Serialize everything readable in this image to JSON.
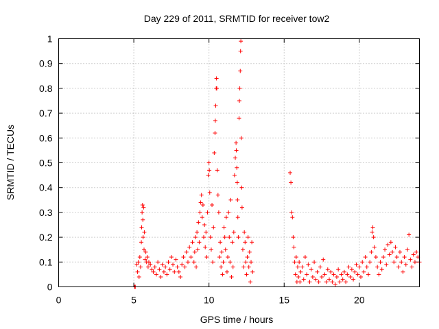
{
  "chart_data": {
    "type": "scatter",
    "title": "Day 229 of 2011, SRMTID for receiver tow2",
    "xlabel": "GPS time / hours",
    "ylabel": "SRMTID / TECUs",
    "xlim": [
      0,
      24
    ],
    "ylim": [
      0,
      1
    ],
    "xticks": [
      "0",
      "5",
      "10",
      "15",
      "20"
    ],
    "yticks": [
      "0",
      "0.1",
      "0.2",
      "0.3",
      "0.4",
      "0.5",
      "0.6",
      "0.7",
      "0.8",
      "0.9",
      "1"
    ],
    "grid": true,
    "marker": "plus",
    "series_color": "#ff0000",
    "series": [
      {
        "points": [
          [
            5.05,
            0.0
          ],
          [
            5.08,
            0.0
          ],
          [
            5.1,
            0.0
          ],
          [
            5.2,
            0.09
          ],
          [
            5.25,
            0.06
          ],
          [
            5.3,
            0.1
          ],
          [
            5.35,
            0.04
          ],
          [
            5.4,
            0.12
          ],
          [
            5.45,
            0.08
          ],
          [
            5.5,
            0.18
          ],
          [
            5.52,
            0.24
          ],
          [
            5.55,
            0.3
          ],
          [
            5.58,
            0.33
          ],
          [
            5.6,
            0.27
          ],
          [
            5.62,
            0.2
          ],
          [
            5.65,
            0.32
          ],
          [
            5.68,
            0.15
          ],
          [
            5.7,
            0.22
          ],
          [
            5.75,
            0.11
          ],
          [
            5.8,
            0.14
          ],
          [
            5.85,
            0.1
          ],
          [
            5.9,
            0.12
          ],
          [
            5.95,
            0.08
          ],
          [
            6.0,
            0.1
          ],
          [
            6.1,
            0.09
          ],
          [
            6.2,
            0.07
          ],
          [
            6.3,
            0.06
          ],
          [
            6.4,
            0.08
          ],
          [
            6.5,
            0.05
          ],
          [
            6.6,
            0.1
          ],
          [
            6.7,
            0.07
          ],
          [
            6.8,
            0.04
          ],
          [
            6.9,
            0.09
          ],
          [
            7.0,
            0.06
          ],
          [
            7.1,
            0.08
          ],
          [
            7.2,
            0.05
          ],
          [
            7.3,
            0.1
          ],
          [
            7.4,
            0.07
          ],
          [
            7.5,
            0.12
          ],
          [
            7.6,
            0.09
          ],
          [
            7.7,
            0.06
          ],
          [
            7.8,
            0.11
          ],
          [
            7.9,
            0.08
          ],
          [
            8.0,
            0.06
          ],
          [
            8.1,
            0.04
          ],
          [
            8.2,
            0.09
          ],
          [
            8.3,
            0.12
          ],
          [
            8.4,
            0.08
          ],
          [
            8.5,
            0.14
          ],
          [
            8.6,
            0.1
          ],
          [
            8.7,
            0.16
          ],
          [
            8.8,
            0.12
          ],
          [
            8.9,
            0.18
          ],
          [
            9.0,
            0.1
          ],
          [
            9.05,
            0.14
          ],
          [
            9.1,
            0.2
          ],
          [
            9.15,
            0.08
          ],
          [
            9.2,
            0.22
          ],
          [
            9.25,
            0.15
          ],
          [
            9.3,
            0.26
          ],
          [
            9.35,
            0.18
          ],
          [
            9.4,
            0.3
          ],
          [
            9.45,
            0.34
          ],
          [
            9.5,
            0.37
          ],
          [
            9.55,
            0.28
          ],
          [
            9.6,
            0.33
          ],
          [
            9.65,
            0.2
          ],
          [
            9.7,
            0.25
          ],
          [
            9.75,
            0.16
          ],
          [
            9.8,
            0.22
          ],
          [
            9.85,
            0.12
          ],
          [
            9.9,
            0.3
          ],
          [
            9.95,
            0.45
          ],
          [
            10.0,
            0.5
          ],
          [
            10.02,
            0.47
          ],
          [
            10.05,
            0.38
          ],
          [
            10.1,
            0.2
          ],
          [
            10.15,
            0.15
          ],
          [
            10.2,
            0.33
          ],
          [
            10.25,
            0.1
          ],
          [
            10.3,
            0.24
          ],
          [
            10.35,
            0.54
          ],
          [
            10.4,
            0.62
          ],
          [
            10.42,
            0.67
          ],
          [
            10.45,
            0.73
          ],
          [
            10.48,
            0.8
          ],
          [
            10.5,
            0.84
          ],
          [
            10.52,
            0.8
          ],
          [
            10.55,
            0.47
          ],
          [
            10.6,
            0.37
          ],
          [
            10.65,
            0.3
          ],
          [
            10.7,
            0.12
          ],
          [
            10.75,
            0.18
          ],
          [
            10.8,
            0.08
          ],
          [
            10.85,
            0.14
          ],
          [
            10.9,
            0.05
          ],
          [
            10.95,
            0.1
          ],
          [
            11.0,
            0.24
          ],
          [
            11.05,
            0.2
          ],
          [
            11.1,
            0.15
          ],
          [
            11.15,
            0.28
          ],
          [
            11.2,
            0.06
          ],
          [
            11.25,
            0.12
          ],
          [
            11.3,
            0.3
          ],
          [
            11.35,
            0.2
          ],
          [
            11.4,
            0.1
          ],
          [
            11.45,
            0.35
          ],
          [
            11.5,
            0.04
          ],
          [
            11.55,
            0.18
          ],
          [
            11.6,
            0.08
          ],
          [
            11.65,
            0.22
          ],
          [
            11.7,
            0.45
          ],
          [
            11.75,
            0.52
          ],
          [
            11.8,
            0.58
          ],
          [
            11.82,
            0.55
          ],
          [
            11.85,
            0.48
          ],
          [
            11.88,
            0.42
          ],
          [
            11.9,
            0.35
          ],
          [
            11.92,
            0.28
          ],
          [
            11.95,
            0.2
          ],
          [
            12.0,
            0.68
          ],
          [
            12.02,
            0.75
          ],
          [
            12.05,
            0.8
          ],
          [
            12.08,
            0.87
          ],
          [
            12.1,
            0.95
          ],
          [
            12.12,
            0.99
          ],
          [
            12.15,
            0.6
          ],
          [
            12.18,
            0.4
          ],
          [
            12.2,
            0.32
          ],
          [
            12.25,
            0.15
          ],
          [
            12.3,
            0.08
          ],
          [
            12.35,
            0.22
          ],
          [
            12.4,
            0.18
          ],
          [
            12.45,
            0.1
          ],
          [
            12.5,
            0.05
          ],
          [
            12.55,
            0.12
          ],
          [
            12.6,
            0.2
          ],
          [
            12.65,
            0.08
          ],
          [
            12.7,
            0.14
          ],
          [
            12.75,
            0.02
          ],
          [
            12.8,
            0.1
          ],
          [
            12.85,
            0.18
          ],
          [
            12.9,
            0.06
          ],
          [
            15.4,
            0.46
          ],
          [
            15.45,
            0.42
          ],
          [
            15.5,
            0.3
          ],
          [
            15.55,
            0.28
          ],
          [
            15.6,
            0.2
          ],
          [
            15.65,
            0.16
          ],
          [
            15.7,
            0.1
          ],
          [
            15.75,
            0.05
          ],
          [
            15.8,
            0.12
          ],
          [
            15.85,
            0.02
          ],
          [
            15.9,
            0.08
          ],
          [
            15.95,
            0.04
          ],
          [
            16.0,
            0.1
          ],
          [
            16.05,
            0.02
          ],
          [
            16.1,
            0.06
          ],
          [
            16.2,
            0.08
          ],
          [
            16.3,
            0.03
          ],
          [
            16.4,
            0.12
          ],
          [
            16.5,
            0.05
          ],
          [
            16.6,
            0.09
          ],
          [
            16.7,
            0.02
          ],
          [
            16.8,
            0.07
          ],
          [
            16.9,
            0.04
          ],
          [
            17.0,
            0.1
          ],
          [
            17.1,
            0.03
          ],
          [
            17.2,
            0.06
          ],
          [
            17.3,
            0.02
          ],
          [
            17.4,
            0.08
          ],
          [
            17.5,
            0.04
          ],
          [
            17.6,
            0.11
          ],
          [
            17.7,
            0.05
          ],
          [
            17.8,
            0.02
          ],
          [
            17.9,
            0.07
          ],
          [
            18.0,
            0.03
          ],
          [
            18.1,
            0.06
          ],
          [
            18.2,
            0.02
          ],
          [
            18.3,
            0.05
          ],
          [
            18.4,
            0.01
          ],
          [
            18.5,
            0.04
          ],
          [
            18.6,
            0.07
          ],
          [
            18.7,
            0.02
          ],
          [
            18.8,
            0.05
          ],
          [
            18.9,
            0.03
          ],
          [
            19.0,
            0.06
          ],
          [
            19.1,
            0.02
          ],
          [
            19.2,
            0.05
          ],
          [
            19.3,
            0.08
          ],
          [
            19.4,
            0.04
          ],
          [
            19.5,
            0.07
          ],
          [
            19.6,
            0.03
          ],
          [
            19.7,
            0.06
          ],
          [
            19.8,
            0.09
          ],
          [
            19.9,
            0.05
          ],
          [
            20.0,
            0.08
          ],
          [
            20.1,
            0.04
          ],
          [
            20.2,
            0.1
          ],
          [
            20.3,
            0.06
          ],
          [
            20.4,
            0.12
          ],
          [
            20.5,
            0.08
          ],
          [
            20.6,
            0.05
          ],
          [
            20.7,
            0.1
          ],
          [
            20.8,
            0.14
          ],
          [
            20.85,
            0.22
          ],
          [
            20.9,
            0.24
          ],
          [
            20.95,
            0.2
          ],
          [
            21.0,
            0.16
          ],
          [
            21.1,
            0.12
          ],
          [
            21.2,
            0.08
          ],
          [
            21.3,
            0.05
          ],
          [
            21.4,
            0.1
          ],
          [
            21.5,
            0.07
          ],
          [
            21.6,
            0.12
          ],
          [
            21.7,
            0.15
          ],
          [
            21.8,
            0.09
          ],
          [
            21.9,
            0.17
          ],
          [
            22.0,
            0.13
          ],
          [
            22.1,
            0.18
          ],
          [
            22.2,
            0.14
          ],
          [
            22.3,
            0.1
          ],
          [
            22.4,
            0.16
          ],
          [
            22.5,
            0.12
          ],
          [
            22.6,
            0.08
          ],
          [
            22.7,
            0.14
          ],
          [
            22.8,
            0.1
          ],
          [
            22.9,
            0.06
          ],
          [
            23.0,
            0.12
          ],
          [
            23.1,
            0.09
          ],
          [
            23.2,
            0.15
          ],
          [
            23.3,
            0.21
          ],
          [
            23.4,
            0.11
          ],
          [
            23.5,
            0.08
          ],
          [
            23.6,
            0.13
          ],
          [
            23.7,
            0.1
          ],
          [
            23.8,
            0.14
          ],
          [
            23.9,
            0.12
          ],
          [
            24.0,
            0.1
          ]
        ]
      }
    ]
  }
}
